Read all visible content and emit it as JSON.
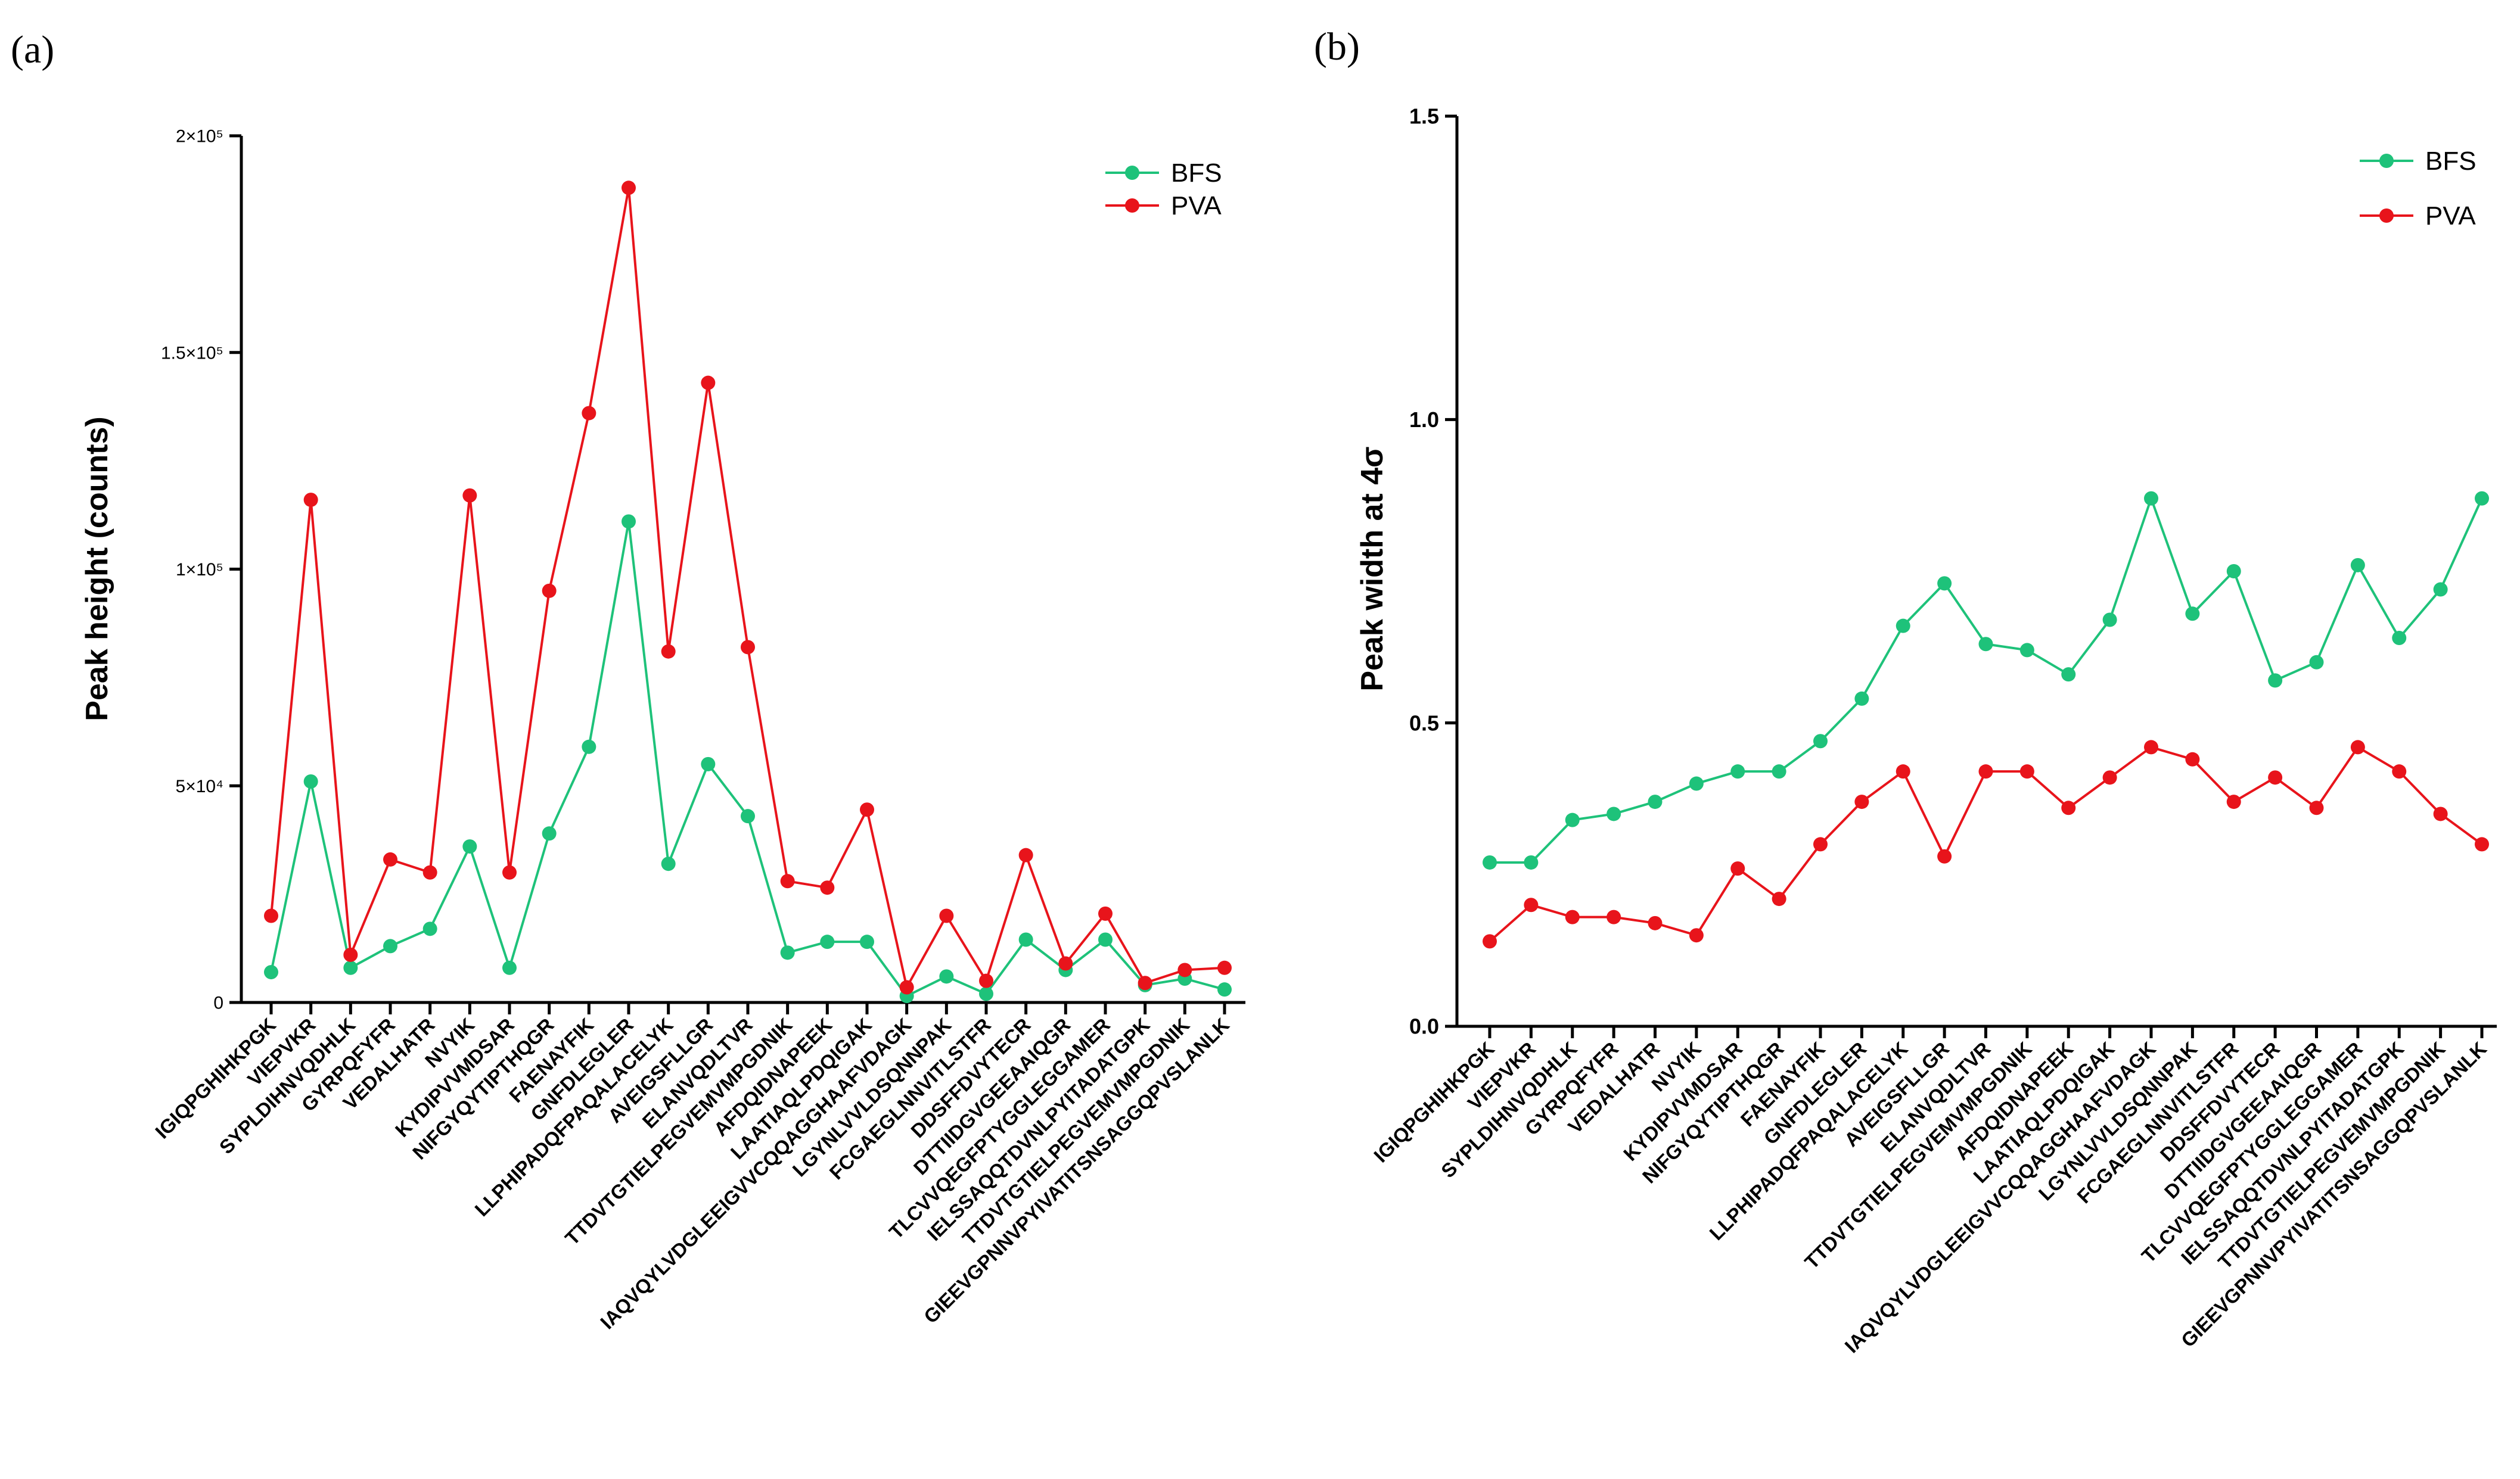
{
  "colors": {
    "bfs": "#1ec27a",
    "pva": "#e8141b"
  },
  "chart_data": [
    {
      "type": "line",
      "panel_label": "(a)",
      "ylabel": "Peak height (counts)",
      "ylim": [
        0,
        200000
      ],
      "yticks": [
        0,
        50000,
        100000,
        150000,
        200000
      ],
      "ytick_labels": [
        "0",
        "5×10⁴",
        "1×10⁵",
        "1.5×10⁵",
        "2×10⁵"
      ],
      "legend_position": "top-right",
      "categories": [
        "IGIQPGHIHKPGK",
        "VIEPVKR",
        "SYPLDIHNVQDHLK",
        "GYRPQFYFR",
        "VEDALHATR",
        "NVYIK",
        "KYDIPVVMDSAR",
        "NIFGYQYTIPTHQGR",
        "FAENAYFIK",
        "GNFDLEGLER",
        "LLPHIPADQFPAQALACELYK",
        "AVEIGSFLLGR",
        "ELANVQDLTVR",
        "TTDVTGTIELPEGVEMVMPGDNIK",
        "AFDQIDNAPEEK",
        "LAATIAQLPDQIGAK",
        "IAQVQYLVDGLEEIGVVCQQAGGHAAFVDAGK",
        "LGYNLVVLDSQNNPAK",
        "FCGAEGLNNVITLSTFR",
        "DDSFFDVYTECR",
        "DTTIIDGVGEEAAIQGR",
        "TLCVVQEGFPTYGGLEGGAMER",
        "IELSSAQQTDVNLPYITADATGPK",
        "TTDVTGTIELPEGVEMVMPGDNIK",
        "GIEEVGPNNVPYIVATITSNSAGGQPVSLANLK"
      ],
      "series": [
        {
          "name": "BFS",
          "values": [
            7000,
            51000,
            8000,
            13000,
            17000,
            36000,
            8000,
            39000,
            59000,
            111000,
            32000,
            55000,
            43000,
            11500,
            14000,
            14000,
            1500,
            6000,
            2000,
            14500,
            7500,
            14500,
            4000,
            5500,
            3000
          ]
        },
        {
          "name": "PVA",
          "values": [
            20000,
            116000,
            11000,
            33000,
            30000,
            117000,
            30000,
            95000,
            136000,
            188000,
            81000,
            143000,
            82000,
            28000,
            26500,
            44500,
            3500,
            20000,
            5000,
            34000,
            9000,
            20500,
            4500,
            7500,
            8000
          ]
        }
      ]
    },
    {
      "type": "line",
      "panel_label": "(b)",
      "ylabel": "Peak width at 4σ",
      "ylim": [
        0,
        1.5
      ],
      "yticks": [
        0,
        0.5,
        1.0,
        1.5
      ],
      "ytick_labels": [
        "0.0",
        "0.5",
        "1.0",
        "1.5"
      ],
      "legend_position": "top-right",
      "categories": [
        "IGIQPGHIHKPGK",
        "VIEPVKR",
        "SYPLDIHNVQDHLK",
        "GYRPQFYFR",
        "VEDALHATR",
        "NVYIK",
        "KYDIPVVMDSAR",
        "NIFGYQYTIPTHQGR",
        "FAENAYFIK",
        "GNFDLEGLER",
        "LLPHIPADQFPAQALACELYK",
        "AVEIGSFLLGR",
        "ELANVQDLTVR",
        "TTDVTGTIELPEGVEMVMPGDNIK",
        "AFDQIDNAPEEK",
        "LAATIAQLPDQIGAK",
        "IAQVQYLVDGLEEIGVVCQQAGGHAAFVDAGK",
        "LGYNLVVLDSQNNPAK",
        "FCGAEGLNNVITLSTFR",
        "DDSFFDVYTECR",
        "DTTIIDGVGEEAAIQGR",
        "TLCVVQEGFPTYGGLEGGAMER",
        "IELSSAQQTDVNLPYITADATGPK",
        "TTDVTGTIELPEGVEMVMPGDNIK",
        "GIEEVGPNNVPYIVATITSNSAGGQPVSLANLK"
      ],
      "series": [
        {
          "name": "BFS",
          "values": [
            0.27,
            0.27,
            0.34,
            0.35,
            0.37,
            0.4,
            0.42,
            0.42,
            0.47,
            0.54,
            0.66,
            0.73,
            0.63,
            0.62,
            0.58,
            0.67,
            0.87,
            0.68,
            0.75,
            0.57,
            0.6,
            0.76,
            0.64,
            0.72,
            0.87
          ]
        },
        {
          "name": "PVA",
          "values": [
            0.14,
            0.2,
            0.18,
            0.18,
            0.17,
            0.15,
            0.26,
            0.21,
            0.3,
            0.37,
            0.42,
            0.28,
            0.42,
            0.42,
            0.36,
            0.41,
            0.46,
            0.44,
            0.37,
            0.41,
            0.36,
            0.46,
            0.42,
            0.35,
            0.3
          ]
        }
      ]
    }
  ]
}
